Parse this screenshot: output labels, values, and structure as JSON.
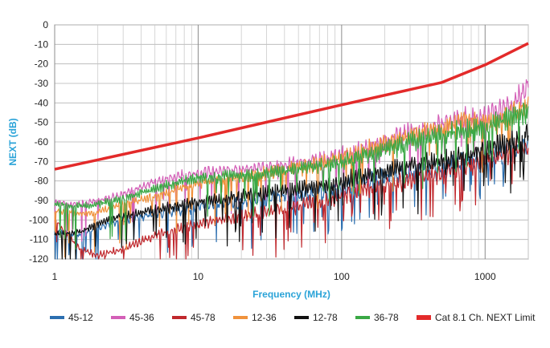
{
  "chart_data": {
    "type": "line",
    "title": "",
    "xlabel": "Frequency (MHz)",
    "ylabel": "NEXT (dB)",
    "xscale": "log",
    "xlim": [
      1,
      2000
    ],
    "ylim": [
      -120,
      0
    ],
    "grid": true,
    "legend_position": "bottom",
    "x_ticks": [
      "1",
      "10",
      "100",
      "1000"
    ],
    "y_ticks": [
      "0",
      "-10",
      "-20",
      "-30",
      "-40",
      "-50",
      "-60",
      "-70",
      "-80",
      "-90",
      "-100",
      "-110",
      "-120"
    ],
    "series": [
      {
        "name": "45-12",
        "color": "#2c6fb0",
        "x": [
          1,
          1.5,
          2,
          3,
          5,
          8,
          12,
          20,
          30,
          50,
          80,
          100,
          150,
          200,
          300,
          500,
          700,
          1000,
          1500,
          2000
        ],
        "y": [
          -105,
          -108,
          -104,
          -100,
          -97,
          -95,
          -92,
          -91,
          -89,
          -87,
          -85,
          -84,
          -80,
          -78,
          -76,
          -74,
          -70,
          -68,
          -64,
          -60
        ]
      },
      {
        "name": "45-36",
        "color": "#d35fb7",
        "x": [
          1,
          1.5,
          2,
          3,
          5,
          8,
          12,
          20,
          30,
          50,
          80,
          100,
          150,
          200,
          300,
          500,
          700,
          1000,
          1500,
          2000
        ],
        "y": [
          -91,
          -92,
          -90,
          -87,
          -80,
          -77,
          -75,
          -74,
          -73,
          -71,
          -69,
          -67,
          -63,
          -60,
          -55,
          -51,
          -48,
          -47,
          -42,
          -32
        ]
      },
      {
        "name": "45-78",
        "color": "#c0282d",
        "x": [
          1,
          1.5,
          2,
          3,
          5,
          8,
          12,
          20,
          30,
          50,
          80,
          100,
          150,
          200,
          300,
          500,
          700,
          1000,
          1500,
          2000
        ],
        "y": [
          -100,
          -115,
          -118,
          -115,
          -108,
          -104,
          -101,
          -98,
          -96,
          -93,
          -90,
          -88,
          -84,
          -82,
          -79,
          -76,
          -73,
          -70,
          -66,
          -62
        ]
      },
      {
        "name": "12-36",
        "color": "#f0923c",
        "x": [
          1,
          1.5,
          2,
          3,
          5,
          8,
          12,
          20,
          30,
          50,
          80,
          100,
          150,
          200,
          300,
          500,
          700,
          1000,
          1500,
          2000
        ],
        "y": [
          -95,
          -97,
          -96,
          -92,
          -88,
          -83,
          -80,
          -78,
          -76,
          -73,
          -70,
          -68,
          -64,
          -61,
          -57,
          -53,
          -50,
          -50,
          -46,
          -41
        ]
      },
      {
        "name": "12-78",
        "color": "#111111",
        "x": [
          1,
          1.5,
          2,
          3,
          5,
          8,
          12,
          20,
          30,
          50,
          80,
          100,
          150,
          200,
          300,
          500,
          700,
          1000,
          1500,
          2000
        ],
        "y": [
          -107,
          -106,
          -102,
          -98,
          -95,
          -92,
          -90,
          -88,
          -86,
          -84,
          -82,
          -80,
          -77,
          -75,
          -72,
          -70,
          -67,
          -63,
          -60,
          -55
        ]
      },
      {
        "name": "36-78",
        "color": "#3aa845",
        "x": [
          1,
          1.5,
          2,
          3,
          5,
          8,
          12,
          20,
          30,
          50,
          80,
          100,
          150,
          200,
          300,
          500,
          700,
          1000,
          1500,
          2000
        ],
        "y": [
          -92,
          -93,
          -92,
          -89,
          -84,
          -80,
          -78,
          -77,
          -76,
          -74,
          -72,
          -70,
          -67,
          -64,
          -60,
          -56,
          -54,
          -52,
          -48,
          -43
        ]
      },
      {
        "name": "Cat 8.1 Ch. NEXT Limit",
        "color": "#e32a2a",
        "limit": true,
        "x": [
          1,
          10,
          100,
          500,
          1000,
          2000
        ],
        "y": [
          -74,
          -58,
          -41,
          -29.5,
          -20.5,
          -9.5
        ]
      }
    ]
  }
}
